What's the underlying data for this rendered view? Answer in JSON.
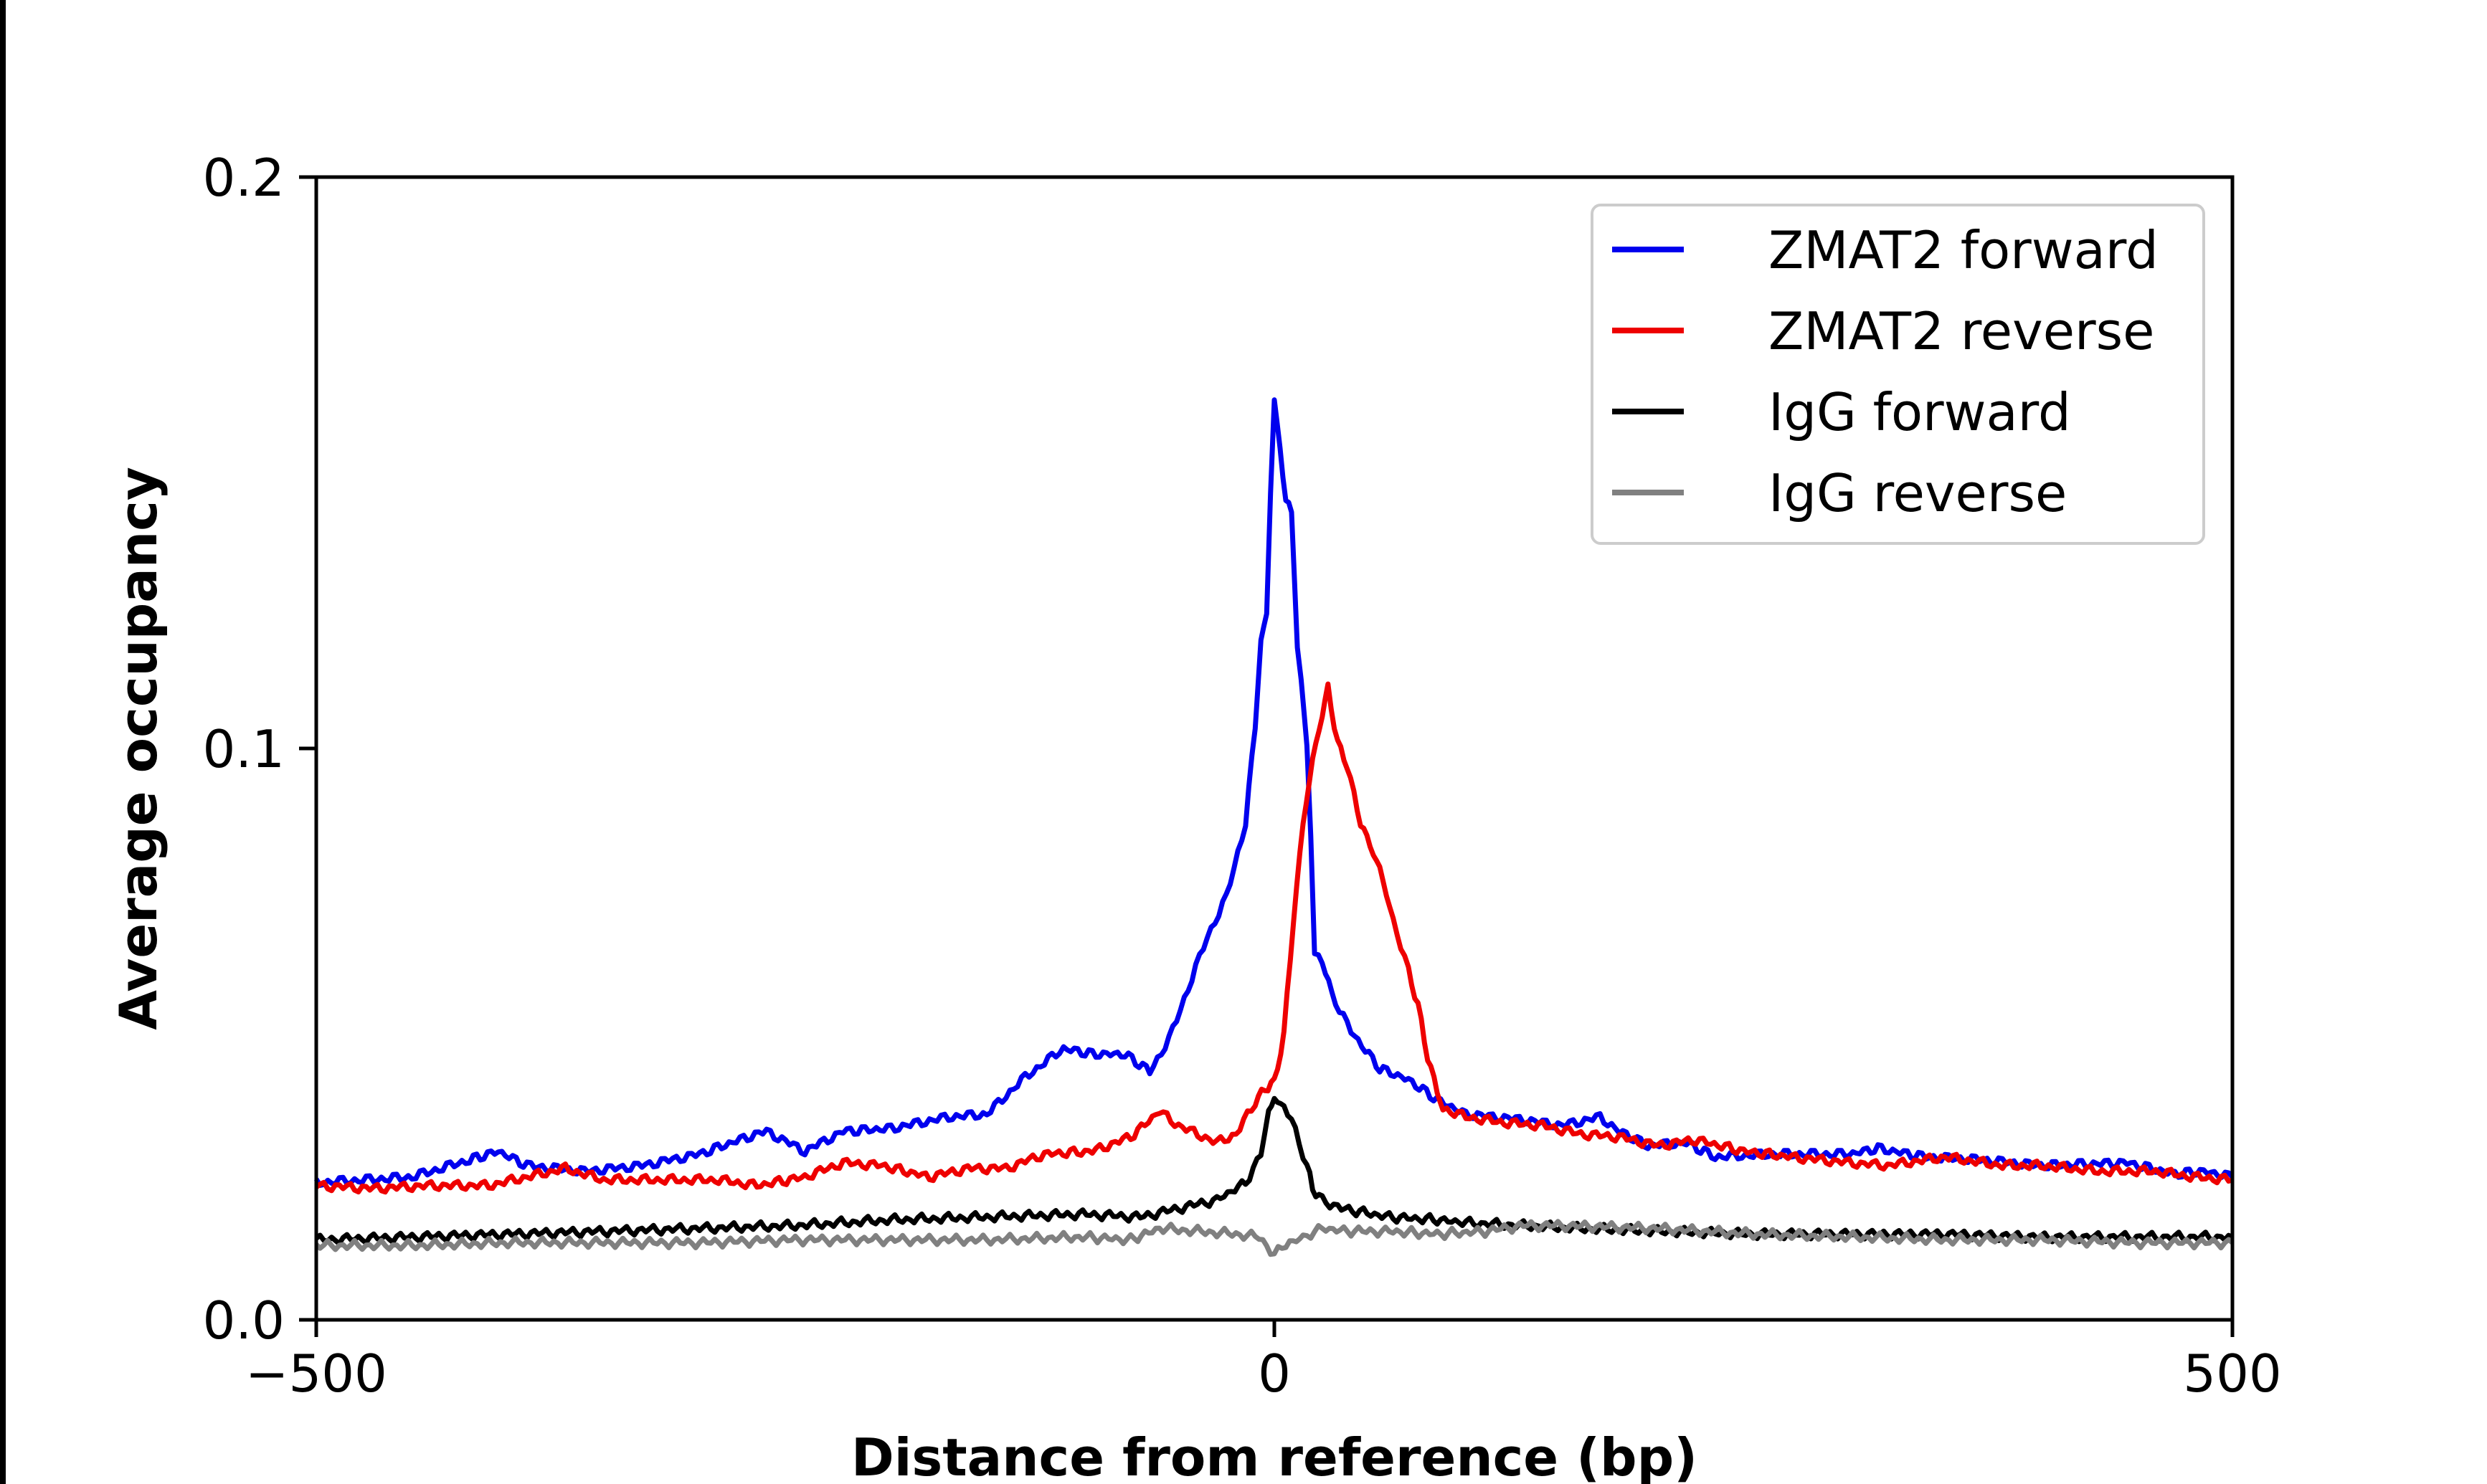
{
  "chart_data": {
    "type": "line",
    "title": "",
    "xlabel": "Distance from reference (bp)",
    "ylabel": "Average occupancy",
    "xlim": [
      -500,
      500
    ],
    "ylim": [
      0,
      0.2
    ],
    "x_ticks": [
      -500,
      0,
      500
    ],
    "x_tick_labels": [
      "−500",
      "0",
      "500"
    ],
    "y_ticks": [
      0,
      0.1,
      0.2
    ],
    "y_tick_labels": [
      "0.0",
      "0.1",
      "0.2"
    ],
    "grid": false,
    "legend_position": "top-right",
    "series": [
      {
        "name": "ZMAT2 forward",
        "color": "#0000ee",
        "points": [
          [
            -500,
            0.024
          ],
          [
            -450,
            0.025
          ],
          [
            -420,
            0.028
          ],
          [
            -405,
            0.0295
          ],
          [
            -390,
            0.027
          ],
          [
            -360,
            0.026
          ],
          [
            -330,
            0.027
          ],
          [
            -300,
            0.029
          ],
          [
            -275,
            0.032
          ],
          [
            -265,
            0.033
          ],
          [
            -245,
            0.0295
          ],
          [
            -225,
            0.033
          ],
          [
            -200,
            0.0335
          ],
          [
            -170,
            0.0355
          ],
          [
            -150,
            0.036
          ],
          [
            -130,
            0.0425
          ],
          [
            -110,
            0.0475
          ],
          [
            -95,
            0.0465
          ],
          [
            -78,
            0.0465
          ],
          [
            -65,
            0.0435
          ],
          [
            -55,
            0.049
          ],
          [
            -45,
            0.058
          ],
          [
            -35,
            0.067
          ],
          [
            -25,
            0.074
          ],
          [
            -15,
            0.087
          ],
          [
            -10,
            0.104
          ],
          [
            -7,
            0.119
          ],
          [
            -4,
            0.123
          ],
          [
            -2,
            0.145
          ],
          [
            0,
            0.161
          ],
          [
            3,
            0.152
          ],
          [
            6,
            0.144
          ],
          [
            9,
            0.141
          ],
          [
            12,
            0.118
          ],
          [
            14,
            0.112
          ],
          [
            17,
            0.1
          ],
          [
            19,
            0.085
          ],
          [
            21,
            0.064
          ],
          [
            25,
            0.063
          ],
          [
            30,
            0.057
          ],
          [
            40,
            0.0505
          ],
          [
            55,
            0.044
          ],
          [
            70,
            0.042
          ],
          [
            85,
            0.0385
          ],
          [
            100,
            0.036
          ],
          [
            130,
            0.035
          ],
          [
            150,
            0.034
          ],
          [
            170,
            0.0355
          ],
          [
            180,
            0.033
          ],
          [
            195,
            0.0305
          ],
          [
            215,
            0.031
          ],
          [
            230,
            0.0285
          ],
          [
            260,
            0.029
          ],
          [
            300,
            0.029
          ],
          [
            315,
            0.03
          ],
          [
            340,
            0.0285
          ],
          [
            370,
            0.028
          ],
          [
            400,
            0.027
          ],
          [
            445,
            0.0275
          ],
          [
            470,
            0.0255
          ],
          [
            485,
            0.026
          ],
          [
            500,
            0.025
          ]
        ]
      },
      {
        "name": "ZMAT2 reverse",
        "color": "#ee0000",
        "points": [
          [
            -500,
            0.0235
          ],
          [
            -470,
            0.023
          ],
          [
            -440,
            0.0235
          ],
          [
            -410,
            0.0235
          ],
          [
            -390,
            0.025
          ],
          [
            -370,
            0.0265
          ],
          [
            -350,
            0.0245
          ],
          [
            -320,
            0.0245
          ],
          [
            -290,
            0.0245
          ],
          [
            -270,
            0.0235
          ],
          [
            -245,
            0.025
          ],
          [
            -225,
            0.0275
          ],
          [
            -205,
            0.027
          ],
          [
            -180,
            0.025
          ],
          [
            -160,
            0.0265
          ],
          [
            -140,
            0.0265
          ],
          [
            -120,
            0.029
          ],
          [
            -95,
            0.0295
          ],
          [
            -75,
            0.032
          ],
          [
            -60,
            0.0365
          ],
          [
            -50,
            0.034
          ],
          [
            -40,
            0.0325
          ],
          [
            -30,
            0.031
          ],
          [
            -20,
            0.0325
          ],
          [
            -10,
            0.038
          ],
          [
            -5,
            0.0405
          ],
          [
            0,
            0.0415
          ],
          [
            5,
            0.05
          ],
          [
            10,
            0.07
          ],
          [
            15,
            0.087
          ],
          [
            20,
            0.098
          ],
          [
            25,
            0.106
          ],
          [
            28,
            0.1105
          ],
          [
            33,
            0.101
          ],
          [
            38,
            0.097
          ],
          [
            45,
            0.087
          ],
          [
            50,
            0.083
          ],
          [
            55,
            0.079
          ],
          [
            62,
            0.07
          ],
          [
            70,
            0.061
          ],
          [
            75,
            0.055
          ],
          [
            80,
            0.046
          ],
          [
            85,
            0.04
          ],
          [
            88,
            0.037
          ],
          [
            100,
            0.0355
          ],
          [
            120,
            0.0345
          ],
          [
            140,
            0.034
          ],
          [
            160,
            0.0325
          ],
          [
            180,
            0.032
          ],
          [
            200,
            0.0305
          ],
          [
            220,
            0.0315
          ],
          [
            245,
            0.0295
          ],
          [
            270,
            0.0285
          ],
          [
            300,
            0.0275
          ],
          [
            320,
            0.027
          ],
          [
            350,
            0.0285
          ],
          [
            380,
            0.027
          ],
          [
            400,
            0.027
          ],
          [
            430,
            0.026
          ],
          [
            460,
            0.026
          ],
          [
            480,
            0.025
          ],
          [
            500,
            0.0245
          ]
        ]
      },
      {
        "name": "IgG forward",
        "color": "#000000",
        "points": [
          [
            -500,
            0.014
          ],
          [
            -450,
            0.0145
          ],
          [
            -400,
            0.015
          ],
          [
            -350,
            0.0155
          ],
          [
            -300,
            0.016
          ],
          [
            -250,
            0.0165
          ],
          [
            -200,
            0.0175
          ],
          [
            -150,
            0.018
          ],
          [
            -100,
            0.0185
          ],
          [
            -70,
            0.018
          ],
          [
            -50,
            0.0195
          ],
          [
            -30,
            0.021
          ],
          [
            -15,
            0.024
          ],
          [
            -7,
            0.029
          ],
          [
            -3,
            0.036
          ],
          [
            0,
            0.039
          ],
          [
            5,
            0.037
          ],
          [
            9,
            0.035
          ],
          [
            13,
            0.031
          ],
          [
            17,
            0.027
          ],
          [
            20,
            0.023
          ],
          [
            25,
            0.021
          ],
          [
            35,
            0.0195
          ],
          [
            60,
            0.018
          ],
          [
            85,
            0.0175
          ],
          [
            100,
            0.017
          ],
          [
            130,
            0.0165
          ],
          [
            160,
            0.016
          ],
          [
            200,
            0.0155
          ],
          [
            250,
            0.015
          ],
          [
            300,
            0.015
          ],
          [
            350,
            0.015
          ],
          [
            400,
            0.0145
          ],
          [
            450,
            0.0145
          ],
          [
            500,
            0.0145
          ]
        ]
      },
      {
        "name": "IgG reverse",
        "color": "#808080",
        "points": [
          [
            -500,
            0.013
          ],
          [
            -450,
            0.013
          ],
          [
            -400,
            0.0135
          ],
          [
            -350,
            0.0135
          ],
          [
            -300,
            0.0135
          ],
          [
            -250,
            0.014
          ],
          [
            -200,
            0.014
          ],
          [
            -150,
            0.014
          ],
          [
            -100,
            0.0145
          ],
          [
            -75,
            0.014
          ],
          [
            -60,
            0.016
          ],
          [
            -40,
            0.0155
          ],
          [
            -20,
            0.015
          ],
          [
            -8,
            0.0145
          ],
          [
            0,
            0.0115
          ],
          [
            8,
            0.0135
          ],
          [
            15,
            0.0145
          ],
          [
            25,
            0.016
          ],
          [
            40,
            0.0155
          ],
          [
            60,
            0.0155
          ],
          [
            85,
            0.015
          ],
          [
            110,
            0.0155
          ],
          [
            130,
            0.0165
          ],
          [
            150,
            0.0165
          ],
          [
            200,
            0.016
          ],
          [
            250,
            0.015
          ],
          [
            300,
            0.0145
          ],
          [
            350,
            0.014
          ],
          [
            400,
            0.014
          ],
          [
            450,
            0.0135
          ],
          [
            500,
            0.0135
          ]
        ]
      }
    ]
  }
}
